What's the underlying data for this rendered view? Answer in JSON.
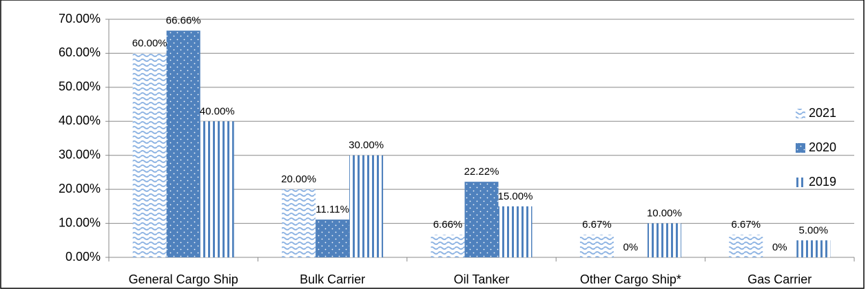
{
  "chart_data": {
    "type": "bar",
    "categories": [
      "General Cargo Ship",
      "Bulk Carrier",
      "Oil Tanker",
      "Other Cargo Ship*",
      "Gas Carrier"
    ],
    "series": [
      {
        "name": "2021",
        "color": "#8eb4e3",
        "values": [
          60,
          20,
          6.66,
          6.67,
          6.67
        ],
        "value_labels": [
          "60.00%",
          "20.00%",
          "6.66%",
          "6.67%",
          "6.67%"
        ]
      },
      {
        "name": "2020",
        "color": "#4f81bd",
        "values": [
          66.66,
          11.11,
          22.22,
          0,
          0
        ],
        "value_labels": [
          "66.66%",
          "11.11%",
          "22.22%",
          "0%",
          "0%"
        ]
      },
      {
        "name": "2019",
        "color": "#4f81bd",
        "values": [
          40,
          30,
          15,
          10,
          5
        ],
        "value_labels": [
          "40.00%",
          "30.00%",
          "15.00%",
          "10.00%",
          "5.00%"
        ]
      }
    ],
    "ylim": [
      0,
      70
    ],
    "yticks": [
      {
        "value": 0,
        "label": "0.00%"
      },
      {
        "value": 10,
        "label": "10.00%"
      },
      {
        "value": 20,
        "label": "20.00%"
      },
      {
        "value": 30,
        "label": "30.00%"
      },
      {
        "value": 40,
        "label": "40.00%"
      },
      {
        "value": 50,
        "label": "50.00%"
      },
      {
        "value": 60,
        "label": "60.00%"
      },
      {
        "value": 70,
        "label": "70.00%"
      }
    ],
    "grid": true,
    "legend": "right"
  }
}
